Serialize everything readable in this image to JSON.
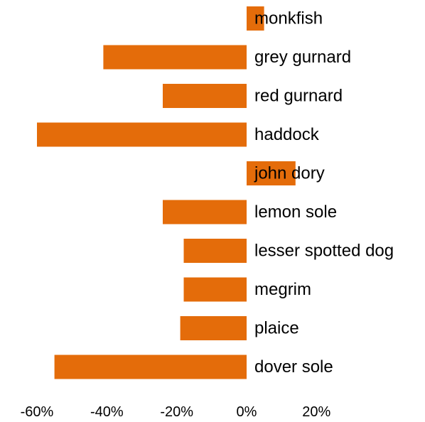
{
  "chart_data": {
    "type": "bar",
    "orientation": "horizontal",
    "categories": [
      "monkfish",
      "grey gurnard",
      "red gurnard",
      "haddock",
      "john dory",
      "lemon sole",
      "lesser spotted dog",
      "megrim",
      "plaice",
      "dover sole"
    ],
    "values": [
      5,
      -41,
      -24,
      -60,
      14,
      -24,
      -18,
      -18,
      -19,
      -55
    ],
    "xlim": [
      -60,
      20
    ],
    "xticks": [
      "-60%",
      "-40%",
      "-20%",
      "0%",
      "20%"
    ],
    "tick_values": [
      -60,
      -40,
      -20,
      0,
      20
    ],
    "bar_color": "#E46C0A",
    "grid": false,
    "title": "",
    "xlabel": "",
    "ylabel": ""
  }
}
